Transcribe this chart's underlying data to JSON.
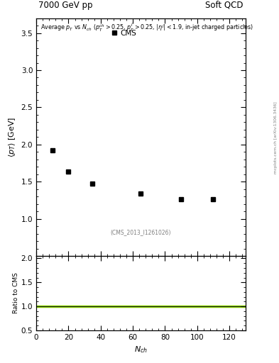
{
  "title_left": "7000 GeV pp",
  "title_right": "Soft QCD",
  "watermark": "(CMS_2013_I1261026)",
  "arxiv_label": "[arXiv:1306.3436]",
  "mcplots_label": "mcplots.cern.ch",
  "legend_label": "CMS",
  "xlabel": "N_{ch}",
  "ylabel": "<p_T> [GeV]",
  "ylabel_ratio": "Ratio to CMS",
  "data_x": [
    10,
    20,
    35,
    65,
    90,
    110
  ],
  "data_y": [
    1.92,
    1.64,
    1.47,
    1.34,
    1.26,
    1.26
  ],
  "xlim": [
    0,
    130
  ],
  "ylim_main": [
    0.5,
    3.7
  ],
  "ylim_ratio": [
    0.5,
    2.05
  ],
  "yticks_main": [
    1.0,
    1.5,
    2.0,
    2.5,
    3.0,
    3.5
  ],
  "yticks_ratio": [
    0.5,
    1.0,
    1.5,
    2.0
  ],
  "ratio_line_y": 1.0,
  "ratio_line_color": "#88cc00",
  "marker_color": "black",
  "marker_style": "s",
  "marker_size": 4.5,
  "background_color": "white",
  "main_height_ratio": 3.2,
  "ratio_height_ratio": 1.0,
  "fontsize_title": 8.5,
  "fontsize_annot": 5.8,
  "fontsize_watermark": 5.5,
  "fontsize_axis": 8,
  "fontsize_legend": 7.5,
  "fontsize_side": 4.2
}
